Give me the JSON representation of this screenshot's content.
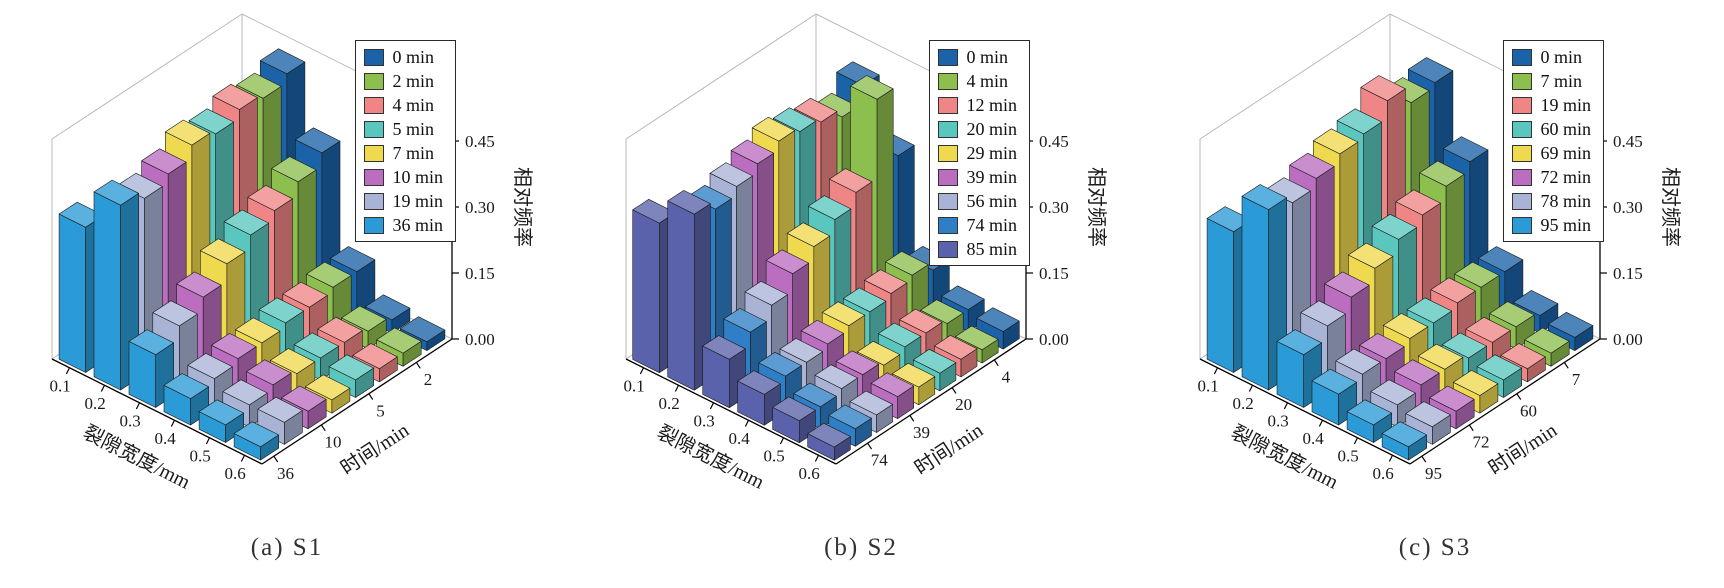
{
  "axis_labels": {
    "x": "裂隙宽度/mm",
    "y": "时间/min",
    "z": "相对频率"
  },
  "x_ticks": [
    "0.1",
    "0.2",
    "0.3",
    "0.4",
    "0.5",
    "0.6"
  ],
  "z_ticks": [
    "0.00",
    "0.15",
    "0.30",
    "0.45"
  ],
  "chart_data": [
    {
      "type": "bar",
      "subtype": "3d-grouped-histogram",
      "caption": "(a) S1",
      "xlabel": "裂隙宽度/mm",
      "ylabel": "时间/min",
      "zlabel": "相对频率",
      "categories": [
        0.1,
        0.2,
        0.3,
        0.4,
        0.5,
        0.6
      ],
      "zlim": [
        0,
        0.5
      ],
      "z_tick_values": [
        0.0,
        0.15,
        0.3,
        0.45
      ],
      "y_tick_labels": [
        "2",
        "5",
        "10",
        "36"
      ],
      "series": [
        {
          "name": "0 min",
          "color": "#1b63a8",
          "values": [
            0.05,
            0.47,
            0.33,
            0.1,
            0.03,
            0.02
          ]
        },
        {
          "name": "2 min",
          "color": "#8dbf4e",
          "values": [
            0.08,
            0.45,
            0.3,
            0.1,
            0.04,
            0.03
          ]
        },
        {
          "name": "4 min",
          "color": "#ef8585",
          "values": [
            0.1,
            0.46,
            0.27,
            0.09,
            0.05,
            0.03
          ]
        },
        {
          "name": "5 min",
          "color": "#59c7be",
          "values": [
            0.13,
            0.44,
            0.25,
            0.09,
            0.05,
            0.04
          ]
        },
        {
          "name": "7 min",
          "color": "#efd94f",
          "values": [
            0.17,
            0.45,
            0.22,
            0.08,
            0.05,
            0.03
          ]
        },
        {
          "name": "10 min",
          "color": "#bb6ec0",
          "values": [
            0.22,
            0.42,
            0.18,
            0.08,
            0.06,
            0.04
          ]
        },
        {
          "name": "19 min",
          "color": "#a9b3d6",
          "values": [
            0.28,
            0.4,
            0.15,
            0.07,
            0.05,
            0.05
          ]
        },
        {
          "name": "36 min",
          "color": "#2b9bd7",
          "values": [
            0.33,
            0.42,
            0.12,
            0.06,
            0.04,
            0.03
          ]
        }
      ]
    },
    {
      "type": "bar",
      "subtype": "3d-grouped-histogram",
      "caption": "(b) S2",
      "xlabel": "裂隙宽度/mm",
      "ylabel": "时间/min",
      "zlabel": "相对频率",
      "categories": [
        0.1,
        0.2,
        0.3,
        0.4,
        0.5,
        0.6
      ],
      "zlim": [
        0,
        0.5
      ],
      "z_tick_values": [
        0.0,
        0.15,
        0.3,
        0.45
      ],
      "y_tick_labels": [
        "4",
        "20",
        "39",
        "74"
      ],
      "series": [
        {
          "name": "0 min",
          "color": "#1b63a8",
          "values": [
            0.05,
            0.44,
            0.32,
            0.1,
            0.05,
            0.04
          ]
        },
        {
          "name": "4 min",
          "color": "#8dbf4e",
          "values": [
            0.07,
            0.4,
            0.48,
            0.12,
            0.05,
            0.03
          ]
        },
        {
          "name": "12 min",
          "color": "#ef8585",
          "values": [
            0.09,
            0.42,
            0.3,
            0.11,
            0.06,
            0.04
          ]
        },
        {
          "name": "20 min",
          "color": "#59c7be",
          "values": [
            0.12,
            0.43,
            0.27,
            0.1,
            0.06,
            0.04
          ]
        },
        {
          "name": "29 min",
          "color": "#efd94f",
          "values": [
            0.15,
            0.44,
            0.24,
            0.1,
            0.05,
            0.04
          ]
        },
        {
          "name": "39 min",
          "color": "#bb6ec0",
          "values": [
            0.19,
            0.42,
            0.21,
            0.09,
            0.06,
            0.05
          ]
        },
        {
          "name": "56 min",
          "color": "#a9b3d6",
          "values": [
            0.24,
            0.4,
            0.17,
            0.08,
            0.06,
            0.04
          ]
        },
        {
          "name": "74 min",
          "color": "#2f7fc6",
          "values": [
            0.29,
            0.38,
            0.14,
            0.08,
            0.05,
            0.04
          ]
        },
        {
          "name": "85 min",
          "color": "#5a62ab",
          "values": [
            0.34,
            0.4,
            0.11,
            0.07,
            0.05,
            0.03
          ]
        }
      ]
    },
    {
      "type": "bar",
      "subtype": "3d-grouped-histogram",
      "caption": "(c) S3",
      "xlabel": "裂隙宽度/mm",
      "ylabel": "时间/min",
      "zlabel": "相对频率",
      "categories": [
        0.1,
        0.2,
        0.3,
        0.4,
        0.5,
        0.6
      ],
      "zlim": [
        0,
        0.5
      ],
      "z_tick_values": [
        0.0,
        0.15,
        0.3,
        0.45
      ],
      "y_tick_labels": [
        "7",
        "60",
        "72",
        "95"
      ],
      "series": [
        {
          "name": "0 min",
          "color": "#1b63a8",
          "values": [
            0.06,
            0.45,
            0.31,
            0.1,
            0.04,
            0.03
          ]
        },
        {
          "name": "7 min",
          "color": "#8dbf4e",
          "values": [
            0.09,
            0.44,
            0.29,
            0.1,
            0.05,
            0.03
          ]
        },
        {
          "name": "19 min",
          "color": "#ef8585",
          "values": [
            0.11,
            0.48,
            0.26,
            0.1,
            0.05,
            0.03
          ]
        },
        {
          "name": "60 min",
          "color": "#59c7be",
          "values": [
            0.14,
            0.44,
            0.24,
            0.09,
            0.05,
            0.04
          ]
        },
        {
          "name": "69 min",
          "color": "#efd94f",
          "values": [
            0.18,
            0.43,
            0.21,
            0.09,
            0.06,
            0.04
          ]
        },
        {
          "name": "72 min",
          "color": "#bb6ec0",
          "values": [
            0.22,
            0.41,
            0.18,
            0.08,
            0.06,
            0.04
          ]
        },
        {
          "name": "78 min",
          "color": "#a9b3d6",
          "values": [
            0.27,
            0.39,
            0.15,
            0.08,
            0.05,
            0.04
          ]
        },
        {
          "name": "95 min",
          "color": "#2b9bd7",
          "values": [
            0.32,
            0.41,
            0.12,
            0.07,
            0.04,
            0.03
          ]
        }
      ]
    }
  ]
}
